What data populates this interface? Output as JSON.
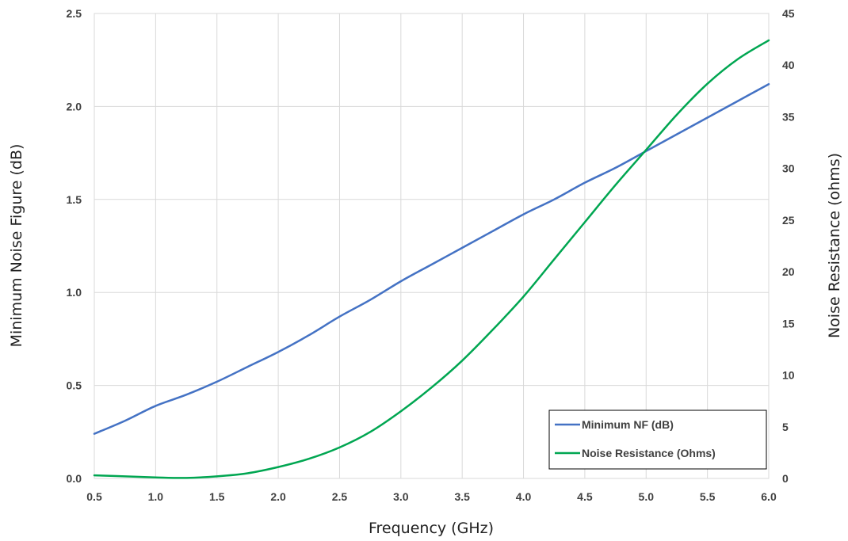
{
  "chart_data": {
    "type": "line",
    "xlabel": "Frequency (GHz)",
    "ylabel": "Minimum Noise Figure (dB)",
    "y2label": "Noise Resistance (ohms)",
    "xlim": [
      0.5,
      6.0
    ],
    "ylim": [
      0,
      2.5
    ],
    "y2lim": [
      0,
      45
    ],
    "xticks": [
      "0.5",
      "1.0",
      "1.5",
      "2.0",
      "2.5",
      "3.0",
      "3.5",
      "4.0",
      "4.5",
      "5.0",
      "5.5",
      "6.0"
    ],
    "yticks": [
      "0.0",
      "0.5",
      "1.0",
      "1.5",
      "2.0",
      "2.5"
    ],
    "y2ticks": [
      "0",
      "5",
      "10",
      "15",
      "20",
      "25",
      "30",
      "35",
      "40",
      "45"
    ],
    "grid": true,
    "legend_position": "bottom-right",
    "series": [
      {
        "name": "Minimum NF (dB)",
        "axis": "left",
        "color": "#4472C4",
        "x": [
          0.5,
          0.75,
          1.0,
          1.25,
          1.5,
          1.75,
          2.0,
          2.25,
          2.5,
          2.75,
          3.0,
          3.25,
          3.5,
          3.75,
          4.0,
          4.25,
          4.5,
          4.75,
          5.0,
          5.25,
          5.5,
          5.75,
          6.0
        ],
        "y": [
          0.24,
          0.31,
          0.39,
          0.45,
          0.52,
          0.6,
          0.68,
          0.77,
          0.87,
          0.96,
          1.06,
          1.15,
          1.24,
          1.33,
          1.42,
          1.5,
          1.59,
          1.67,
          1.76,
          1.85,
          1.94,
          2.03,
          2.12
        ]
      },
      {
        "name": "Noise Resistance (Ohms)",
        "axis": "right",
        "color": "#00A651",
        "x": [
          0.5,
          0.75,
          1.0,
          1.25,
          1.5,
          1.75,
          2.0,
          2.25,
          2.5,
          2.75,
          3.0,
          3.25,
          3.5,
          3.75,
          4.0,
          4.25,
          4.5,
          4.75,
          5.0,
          5.25,
          5.5,
          5.75,
          6.0
        ],
        "y": [
          0.3,
          0.2,
          0.1,
          0.05,
          0.2,
          0.5,
          1.1,
          1.9,
          3.0,
          4.5,
          6.5,
          8.8,
          11.4,
          14.4,
          17.6,
          21.2,
          24.8,
          28.4,
          31.8,
          35.2,
          38.2,
          40.6,
          42.4
        ]
      }
    ]
  }
}
